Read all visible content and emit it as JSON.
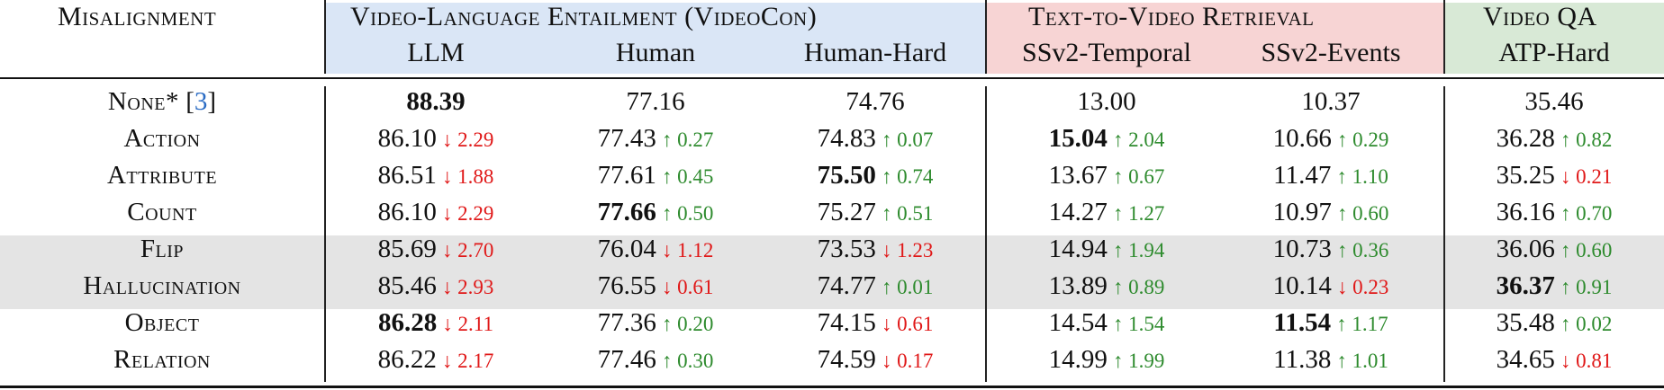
{
  "header": {
    "misalignment_label": "Misalignment",
    "groups": [
      {
        "title": "Video-Language Entailment (VideoCon)",
        "color": "#dae6f6",
        "columns": [
          "LLM",
          "Human",
          "Human-Hard"
        ]
      },
      {
        "title": "Text-to-Video Retrieval",
        "color": "#f7d4d4",
        "columns": [
          "SSv2-Temporal",
          "SSv2-Events"
        ]
      },
      {
        "title": "Video QA",
        "color": "#d8e9d6",
        "columns": [
          "ATP-Hard"
        ]
      }
    ]
  },
  "colors": {
    "up": "#2e8b2e",
    "down": "#e01818",
    "shade": "#e4e4e4",
    "ref": "#2b6cc4"
  },
  "rows": [
    {
      "label": "None*",
      "ref": "3",
      "shaded": false,
      "cells": [
        {
          "value": "88.39",
          "bold": true,
          "delta": null
        },
        {
          "value": "77.16",
          "bold": false,
          "delta": null
        },
        {
          "value": "74.76",
          "bold": false,
          "delta": null
        },
        {
          "value": "13.00",
          "bold": false,
          "delta": null
        },
        {
          "value": "10.37",
          "bold": false,
          "delta": null
        },
        {
          "value": "35.46",
          "bold": false,
          "delta": null
        }
      ]
    },
    {
      "label": "Action",
      "ref": null,
      "shaded": false,
      "cells": [
        {
          "value": "86.10",
          "bold": false,
          "delta": "↓ 2.29",
          "dir": "down"
        },
        {
          "value": "77.43",
          "bold": false,
          "delta": "↑ 0.27",
          "dir": "up"
        },
        {
          "value": "74.83",
          "bold": false,
          "delta": "↑ 0.07",
          "dir": "up"
        },
        {
          "value": "15.04",
          "bold": true,
          "delta": "↑ 2.04",
          "dir": "up"
        },
        {
          "value": "10.66",
          "bold": false,
          "delta": "↑ 0.29",
          "dir": "up"
        },
        {
          "value": "36.28",
          "bold": false,
          "delta": "↑ 0.82",
          "dir": "up"
        }
      ]
    },
    {
      "label": "Attribute",
      "ref": null,
      "shaded": false,
      "cells": [
        {
          "value": "86.51",
          "bold": false,
          "delta": "↓ 1.88",
          "dir": "down"
        },
        {
          "value": "77.61",
          "bold": false,
          "delta": "↑ 0.45",
          "dir": "up"
        },
        {
          "value": "75.50",
          "bold": true,
          "delta": "↑ 0.74",
          "dir": "up"
        },
        {
          "value": "13.67",
          "bold": false,
          "delta": "↑ 0.67",
          "dir": "up"
        },
        {
          "value": "11.47",
          "bold": false,
          "delta": "↑ 1.10",
          "dir": "up"
        },
        {
          "value": "35.25",
          "bold": false,
          "delta": "↓ 0.21",
          "dir": "down"
        }
      ]
    },
    {
      "label": "Count",
      "ref": null,
      "shaded": false,
      "cells": [
        {
          "value": "86.10",
          "bold": false,
          "delta": "↓ 2.29",
          "dir": "down"
        },
        {
          "value": "77.66",
          "bold": true,
          "delta": "↑ 0.50",
          "dir": "up"
        },
        {
          "value": "75.27",
          "bold": false,
          "delta": "↑ 0.51",
          "dir": "up"
        },
        {
          "value": "14.27",
          "bold": false,
          "delta": "↑ 1.27",
          "dir": "up"
        },
        {
          "value": "10.97",
          "bold": false,
          "delta": "↑ 0.60",
          "dir": "up"
        },
        {
          "value": "36.16",
          "bold": false,
          "delta": "↑ 0.70",
          "dir": "up"
        }
      ]
    },
    {
      "label": "Flip",
      "ref": null,
      "shaded": true,
      "cells": [
        {
          "value": "85.69",
          "bold": false,
          "delta": "↓ 2.70",
          "dir": "down"
        },
        {
          "value": "76.04",
          "bold": false,
          "delta": "↓ 1.12",
          "dir": "down"
        },
        {
          "value": "73.53",
          "bold": false,
          "delta": "↓ 1.23",
          "dir": "down"
        },
        {
          "value": "14.94",
          "bold": false,
          "delta": "↑ 1.94",
          "dir": "up"
        },
        {
          "value": "10.73",
          "bold": false,
          "delta": "↑ 0.36",
          "dir": "up"
        },
        {
          "value": "36.06",
          "bold": false,
          "delta": "↑ 0.60",
          "dir": "up"
        }
      ]
    },
    {
      "label": "Hallucination",
      "ref": null,
      "shaded": true,
      "cells": [
        {
          "value": "85.46",
          "bold": false,
          "delta": "↓ 2.93",
          "dir": "down"
        },
        {
          "value": "76.55",
          "bold": false,
          "delta": "↓ 0.61",
          "dir": "down"
        },
        {
          "value": "74.77",
          "bold": false,
          "delta": "↑ 0.01",
          "dir": "up"
        },
        {
          "value": "13.89",
          "bold": false,
          "delta": "↑ 0.89",
          "dir": "up"
        },
        {
          "value": "10.14",
          "bold": false,
          "delta": "↓ 0.23",
          "dir": "down"
        },
        {
          "value": "36.37",
          "bold": true,
          "delta": "↑ 0.91",
          "dir": "up"
        }
      ]
    },
    {
      "label": "Object",
      "ref": null,
      "shaded": false,
      "cells": [
        {
          "value": "86.28",
          "bold": true,
          "delta": "↓ 2.11",
          "dir": "down"
        },
        {
          "value": "77.36",
          "bold": false,
          "delta": "↑ 0.20",
          "dir": "up"
        },
        {
          "value": "74.15",
          "bold": false,
          "delta": "↓ 0.61",
          "dir": "down"
        },
        {
          "value": "14.54",
          "bold": false,
          "delta": "↑ 1.54",
          "dir": "up"
        },
        {
          "value": "11.54",
          "bold": true,
          "delta": "↑ 1.17",
          "dir": "up"
        },
        {
          "value": "35.48",
          "bold": false,
          "delta": "↑ 0.02",
          "dir": "up"
        }
      ]
    },
    {
      "label": "Relation",
      "ref": null,
      "shaded": false,
      "cells": [
        {
          "value": "86.22",
          "bold": false,
          "delta": "↓ 2.17",
          "dir": "down"
        },
        {
          "value": "77.46",
          "bold": false,
          "delta": "↑ 0.30",
          "dir": "up"
        },
        {
          "value": "74.59",
          "bold": false,
          "delta": "↓ 0.17",
          "dir": "down"
        },
        {
          "value": "14.99",
          "bold": false,
          "delta": "↑ 1.99",
          "dir": "up"
        },
        {
          "value": "11.38",
          "bold": false,
          "delta": "↑ 1.01",
          "dir": "up"
        },
        {
          "value": "34.65",
          "bold": false,
          "delta": "↓ 0.81",
          "dir": "down"
        }
      ]
    }
  ]
}
